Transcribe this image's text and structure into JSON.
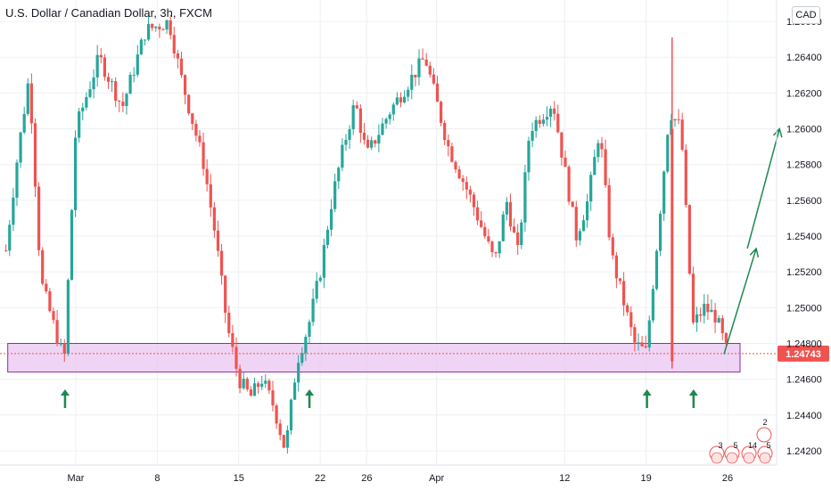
{
  "header": {
    "title": "U.S. Dollar / Canadian Dollar, 3h, FXCM",
    "currency": "CAD"
  },
  "colors": {
    "up": "#26a69a",
    "down": "#ef5350",
    "zone_fill": "#e9c5f2",
    "zone_stroke": "#8e2aa5",
    "arrow": "#1b8a4f",
    "price_tag": "#ef5350",
    "grid": "#eef0f4"
  },
  "events": {
    "stack": [
      "3",
      "5",
      "14",
      "5"
    ],
    "count": "2"
  },
  "chart_data": {
    "type": "candlestick",
    "title": "U.S. Dollar / Canadian Dollar, 3h, FXCM",
    "y_axis": {
      "range": [
        1.2412,
        1.2672
      ],
      "ticks": [
        "1.26600",
        "1.26400",
        "1.26200",
        "1.26000",
        "1.25800",
        "1.25600",
        "1.25400",
        "1.25200",
        "1.25000",
        "1.24800",
        "1.24600",
        "1.24400",
        "1.24200"
      ]
    },
    "x_axis": {
      "ticks": [
        "Mar",
        "8",
        "15",
        "22",
        "26",
        "Apr",
        "12",
        "19",
        "26"
      ]
    },
    "last_price": "1.24743",
    "support_zone": [
      1.2464,
      1.248
    ],
    "grid": true,
    "path": [
      [
        "Feb 23",
        1.2532
      ],
      [
        "Feb 24",
        1.2585
      ],
      [
        "Feb 25",
        1.263
      ],
      [
        "Feb 26",
        1.2515
      ],
      [
        "Feb 28",
        1.247
      ],
      [
        "Mar 1",
        1.26
      ],
      [
        "Mar 3",
        1.264
      ],
      [
        "Mar 5",
        1.2612
      ],
      [
        "Mar 7",
        1.2655
      ],
      [
        "Mar 9",
        1.266
      ],
      [
        "Mar 10",
        1.263
      ],
      [
        "Mar 12",
        1.258
      ],
      [
        "Mar 13",
        1.254
      ],
      [
        "Mar 14",
        1.249
      ],
      [
        "Mar 15",
        1.246
      ],
      [
        "Mar 16",
        1.245
      ],
      [
        "Mar 17",
        1.246
      ],
      [
        "Mar 18",
        1.2445
      ],
      [
        "Mar 19",
        1.242
      ],
      [
        "Mar 20",
        1.247
      ],
      [
        "Mar 21",
        1.249
      ],
      [
        "Mar 22",
        1.252
      ],
      [
        "Mar 23",
        1.256
      ],
      [
        "Mar 24",
        1.259
      ],
      [
        "Mar 25",
        1.2615
      ],
      [
        "Mar 26",
        1.2585
      ],
      [
        "Mar 28",
        1.261
      ],
      [
        "Mar 31",
        1.264
      ],
      [
        "Apr 2",
        1.259
      ],
      [
        "Apr 4",
        1.256
      ],
      [
        "Apr 6",
        1.2525
      ],
      [
        "Apr 7",
        1.256
      ],
      [
        "Apr 8",
        1.253
      ],
      [
        "Apr 9",
        1.26
      ],
      [
        "Apr 11",
        1.2615
      ],
      [
        "Apr 13",
        1.254
      ],
      [
        "Apr 14",
        1.256
      ],
      [
        "Apr 15",
        1.26
      ],
      [
        "Apr 16",
        1.253
      ],
      [
        "Apr 18",
        1.248
      ],
      [
        "Apr 19",
        1.2475
      ],
      [
        "Apr 20",
        1.254
      ],
      [
        "Apr 21",
        1.261
      ],
      [
        "Apr 22",
        1.26
      ],
      [
        "Apr 23",
        1.249
      ],
      [
        "Apr 24",
        1.25
      ],
      [
        "Apr 25",
        1.2495
      ],
      [
        "Apr 26",
        1.2474
      ]
    ],
    "spikes": [
      [
        "Apr 22",
        1.2651,
        1.2466
      ]
    ],
    "annotations": {
      "up_markers": [
        "Feb 28",
        "Mar 21",
        "Apr 19",
        "Apr 23"
      ],
      "projection": [
        {
          "from": [
            "Apr 26",
            1.2474
          ],
          "to": [
            "Apr 28",
            1.2533
          ]
        },
        {
          "from": [
            "Apr 28",
            1.2533
          ],
          "to": [
            "Apr 30",
            1.26
          ]
        }
      ]
    }
  }
}
